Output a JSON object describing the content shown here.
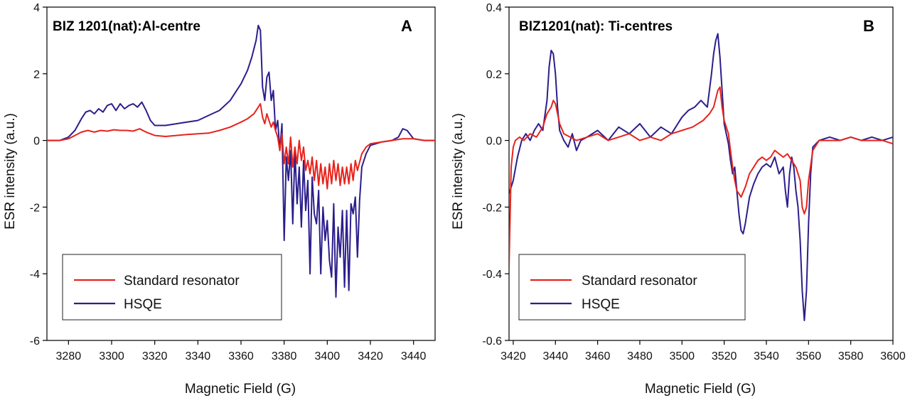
{
  "chart_data": [
    {
      "type": "line",
      "panel_title": "BIZ 1201(nat):Al-centre",
      "panel_letter": "A",
      "xlabel": "Magnetic Field (G)",
      "ylabel": "ESR intensity (a.u.)",
      "xlim": [
        3270,
        3450
      ],
      "ylim": [
        -6,
        4
      ],
      "xticks": [
        "3280",
        "3300",
        "3320",
        "3340",
        "3360",
        "3380",
        "3400",
        "3420",
        "3440"
      ],
      "yticks": [
        "-6",
        "-4",
        "-2",
        "0",
        "2",
        "4"
      ],
      "legend_position": "bottom-left",
      "series": [
        {
          "name": "Standard resonator",
          "color": "#e8231c",
          "x": [
            3270,
            3276,
            3280,
            3283,
            3286,
            3289,
            3292,
            3295,
            3298,
            3301,
            3304,
            3307,
            3310,
            3313,
            3316,
            3320,
            3325,
            3330,
            3335,
            3340,
            3345,
            3350,
            3355,
            3360,
            3363,
            3366,
            3368,
            3369,
            3370,
            3371,
            3372,
            3373,
            3374,
            3375,
            3376,
            3377,
            3378,
            3379,
            3380,
            3381,
            3382,
            3383,
            3384,
            3385,
            3386,
            3387,
            3388,
            3389,
            3390,
            3391,
            3392,
            3393,
            3394,
            3395,
            3396,
            3397,
            3398,
            3399,
            3400,
            3401,
            3402,
            3403,
            3404,
            3405,
            3406,
            3407,
            3408,
            3409,
            3410,
            3411,
            3412,
            3413,
            3414,
            3416,
            3418,
            3420,
            3425,
            3430,
            3435,
            3440,
            3445,
            3450
          ],
          "values": [
            0.0,
            0.0,
            0.05,
            0.15,
            0.25,
            0.3,
            0.25,
            0.3,
            0.28,
            0.32,
            0.3,
            0.3,
            0.28,
            0.35,
            0.25,
            0.15,
            0.12,
            0.15,
            0.18,
            0.2,
            0.22,
            0.3,
            0.4,
            0.55,
            0.65,
            0.8,
            1.0,
            1.1,
            0.7,
            0.5,
            0.8,
            0.6,
            0.4,
            0.55,
            0.3,
            0.1,
            -0.3,
            0.2,
            -0.7,
            -0.2,
            -0.7,
            0.1,
            -0.8,
            -0.2,
            -0.7,
            0.0,
            -0.6,
            -0.2,
            -0.9,
            -0.6,
            -1.0,
            -0.5,
            -1.2,
            -0.6,
            -1.35,
            -0.7,
            -1.3,
            -0.8,
            -1.45,
            -0.7,
            -1.3,
            -0.6,
            -1.2,
            -0.7,
            -1.35,
            -0.8,
            -1.3,
            -0.8,
            -1.3,
            -0.7,
            -1.2,
            -0.6,
            -0.9,
            -0.4,
            -0.2,
            -0.1,
            -0.05,
            0.0,
            0.05,
            0.05,
            0.0,
            0.0
          ]
        },
        {
          "name": "HSQE",
          "color": "#2b1e8c",
          "x": [
            3270,
            3276,
            3280,
            3283,
            3286,
            3288,
            3290,
            3292,
            3294,
            3296,
            3298,
            3300,
            3302,
            3304,
            3306,
            3308,
            3310,
            3312,
            3314,
            3316,
            3318,
            3320,
            3325,
            3330,
            3335,
            3340,
            3345,
            3350,
            3355,
            3360,
            3363,
            3365,
            3367,
            3368,
            3369,
            3370,
            3371,
            3372,
            3373,
            3374,
            3375,
            3376,
            3377,
            3378,
            3379,
            3380,
            3381,
            3382,
            3383,
            3384,
            3385,
            3386,
            3387,
            3388,
            3389,
            3390,
            3391,
            3392,
            3393,
            3394,
            3395,
            3396,
            3397,
            3398,
            3399,
            3400,
            3401,
            3402,
            3403,
            3404,
            3405,
            3406,
            3407,
            3408,
            3409,
            3410,
            3411,
            3412,
            3413,
            3414,
            3415,
            3416,
            3418,
            3420,
            3425,
            3430,
            3433,
            3435,
            3437,
            3440,
            3445,
            3450
          ],
          "values": [
            0.0,
            0.0,
            0.1,
            0.3,
            0.65,
            0.85,
            0.9,
            0.8,
            0.95,
            0.85,
            1.05,
            1.1,
            0.9,
            1.1,
            0.95,
            1.05,
            1.1,
            1.0,
            1.15,
            0.9,
            0.6,
            0.45,
            0.45,
            0.5,
            0.55,
            0.6,
            0.75,
            0.9,
            1.2,
            1.7,
            2.1,
            2.5,
            3.0,
            3.45,
            3.3,
            1.6,
            1.2,
            1.9,
            2.05,
            1.2,
            1.5,
            0.3,
            0.6,
            -0.3,
            0.5,
            -3.0,
            -0.5,
            -1.2,
            -0.3,
            -2.5,
            -0.3,
            -1.9,
            -0.8,
            -2.6,
            -0.6,
            -2.1,
            -1.2,
            -4.0,
            -1.1,
            -2.2,
            -2.5,
            -1.5,
            -4.0,
            -2.0,
            -3.0,
            -2.4,
            -3.6,
            -4.1,
            -1.9,
            -4.7,
            -2.6,
            -3.5,
            -2.1,
            -4.4,
            -2.1,
            -4.5,
            -1.9,
            -2.2,
            -1.7,
            -3.5,
            -1.8,
            -0.8,
            -0.4,
            -0.15,
            -0.05,
            0.0,
            0.1,
            0.35,
            0.3,
            0.05,
            0.0,
            0.0
          ]
        }
      ]
    },
    {
      "type": "line",
      "panel_title": "BIZ1201(nat): Ti-centres",
      "panel_letter": "B",
      "xlabel": "Magnetic Field (G)",
      "ylabel": "ESR intensity (a.u.)",
      "xlim": [
        3418,
        3600
      ],
      "ylim": [
        -0.6,
        0.4
      ],
      "xticks": [
        "3420",
        "3440",
        "3460",
        "3480",
        "3500",
        "3520",
        "3540",
        "3560",
        "3580",
        "3600"
      ],
      "yticks": [
        "-0.6",
        "-0.4",
        "-0.2",
        "0.0",
        "0.2",
        "0.4"
      ],
      "legend_position": "bottom-left",
      "series": [
        {
          "name": "Standard resonator",
          "color": "#e8231c",
          "x": [
            3418,
            3419,
            3420,
            3421,
            3423,
            3425,
            3428,
            3431,
            3434,
            3436,
            3438,
            3439,
            3440,
            3442,
            3444,
            3447,
            3450,
            3455,
            3460,
            3465,
            3470,
            3475,
            3480,
            3485,
            3490,
            3495,
            3500,
            3505,
            3510,
            3513,
            3515,
            3517,
            3518,
            3519,
            3520,
            3521,
            3522,
            3523,
            3524,
            3525,
            3526,
            3528,
            3530,
            3532,
            3534,
            3536,
            3538,
            3540,
            3542,
            3544,
            3546,
            3548,
            3550,
            3552,
            3554,
            3556,
            3557,
            3558,
            3559,
            3560,
            3562,
            3565,
            3570,
            3575,
            3580,
            3585,
            3590,
            3595,
            3600
          ],
          "values": [
            -0.38,
            -0.08,
            -0.02,
            0.0,
            0.01,
            0.0,
            0.02,
            0.01,
            0.04,
            0.08,
            0.1,
            0.12,
            0.11,
            0.05,
            0.02,
            0.01,
            0.0,
            0.01,
            0.02,
            0.0,
            0.01,
            0.02,
            0.0,
            0.01,
            0.0,
            0.02,
            0.03,
            0.04,
            0.06,
            0.08,
            0.1,
            0.15,
            0.16,
            0.1,
            0.06,
            0.04,
            0.02,
            -0.03,
            -0.08,
            -0.12,
            -0.15,
            -0.17,
            -0.14,
            -0.1,
            -0.08,
            -0.06,
            -0.05,
            -0.06,
            -0.05,
            -0.03,
            -0.04,
            -0.05,
            -0.04,
            -0.06,
            -0.08,
            -0.12,
            -0.2,
            -0.22,
            -0.2,
            -0.12,
            -0.03,
            0.0,
            0.0,
            0.0,
            0.01,
            0.0,
            0.0,
            0.0,
            -0.01
          ]
        },
        {
          "name": "HSQE",
          "color": "#2b1e8c",
          "x": [
            3418,
            3419,
            3420,
            3422,
            3424,
            3426,
            3428,
            3430,
            3432,
            3434,
            3436,
            3437,
            3438,
            3439,
            3440,
            3441,
            3442,
            3444,
            3446,
            3448,
            3450,
            3452,
            3455,
            3460,
            3465,
            3470,
            3475,
            3480,
            3485,
            3490,
            3495,
            3500,
            3503,
            3506,
            3509,
            3512,
            3514,
            3515,
            3516,
            3517,
            3518,
            3519,
            3520,
            3521,
            3522,
            3523,
            3524,
            3525,
            3526,
            3527,
            3528,
            3529,
            3530,
            3532,
            3534,
            3536,
            3538,
            3540,
            3542,
            3544,
            3546,
            3548,
            3549,
            3550,
            3551,
            3552,
            3553,
            3554,
            3555,
            3556,
            3557,
            3558,
            3559,
            3560,
            3561,
            3562,
            3565,
            3570,
            3575,
            3580,
            3585,
            3590,
            3595,
            3600
          ],
          "values": [
            -0.16,
            -0.14,
            -0.12,
            -0.05,
            0.0,
            0.02,
            0.0,
            0.03,
            0.05,
            0.03,
            0.12,
            0.22,
            0.27,
            0.26,
            0.2,
            0.1,
            0.03,
            0.0,
            -0.02,
            0.02,
            -0.03,
            0.0,
            0.01,
            0.03,
            0.0,
            0.04,
            0.02,
            0.05,
            0.01,
            0.04,
            0.02,
            0.07,
            0.09,
            0.1,
            0.12,
            0.1,
            0.2,
            0.26,
            0.3,
            0.32,
            0.25,
            0.15,
            0.05,
            0.02,
            -0.01,
            -0.06,
            -0.1,
            -0.08,
            -0.15,
            -0.22,
            -0.27,
            -0.28,
            -0.25,
            -0.17,
            -0.13,
            -0.1,
            -0.08,
            -0.07,
            -0.08,
            -0.05,
            -0.1,
            -0.08,
            -0.15,
            -0.2,
            -0.1,
            -0.05,
            -0.08,
            -0.15,
            -0.2,
            -0.3,
            -0.45,
            -0.54,
            -0.45,
            -0.25,
            -0.1,
            -0.02,
            0.0,
            0.01,
            0.0,
            0.01,
            0.0,
            0.01,
            0.0,
            0.01
          ]
        }
      ]
    }
  ]
}
